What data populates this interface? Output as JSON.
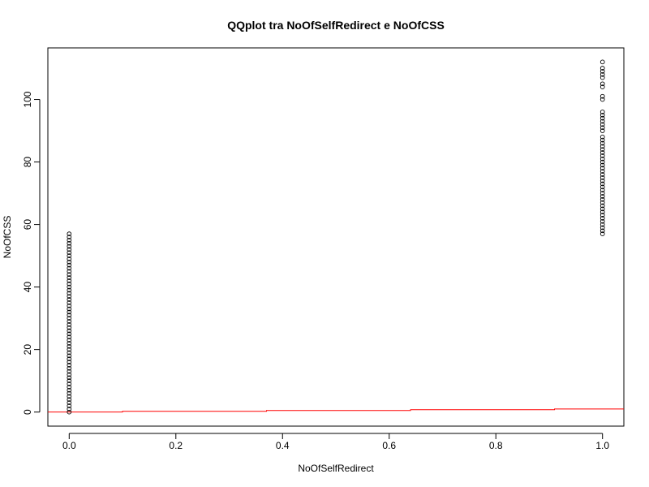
{
  "chart_data": {
    "type": "scatter",
    "title": "QQplot tra NoOfSelfRedirect e NoOfCSS",
    "xlabel": "NoOfSelfRedirect",
    "ylabel": "NoOfCSS",
    "xlim": [
      -0.04,
      1.04
    ],
    "ylim": [
      -4.5,
      116.5
    ],
    "x_ticks": [
      0.0,
      0.2,
      0.4,
      0.6,
      0.8,
      1.0
    ],
    "x_tick_labels": [
      "0.0",
      "0.2",
      "0.4",
      "0.6",
      "0.8",
      "1.0"
    ],
    "y_ticks": [
      0,
      20,
      40,
      60,
      80,
      100
    ],
    "y_tick_labels": [
      "0",
      "20",
      "40",
      "60",
      "80",
      "100"
    ],
    "grid": false,
    "series": [
      {
        "x": 0,
        "y": [
          0,
          1,
          2,
          3,
          4,
          5,
          6,
          7,
          8,
          9,
          10,
          11,
          12,
          13,
          14,
          15,
          16,
          17,
          18,
          19,
          20,
          21,
          22,
          23,
          24,
          25,
          26,
          27,
          28,
          29,
          30,
          31,
          32,
          33,
          34,
          35,
          36,
          37,
          38,
          39,
          40,
          41,
          42,
          43,
          44,
          45,
          46,
          47,
          48,
          49,
          50,
          51,
          52,
          53,
          54,
          55,
          56,
          57
        ],
        "marker": "open-circle",
        "color": "#000000"
      },
      {
        "x": 1,
        "y": [
          57,
          58,
          59,
          60,
          61,
          62,
          63,
          64,
          65,
          66,
          67,
          68,
          69,
          70,
          71,
          72,
          73,
          74,
          75,
          76,
          77,
          78,
          79,
          80,
          81,
          82,
          83,
          84,
          85,
          86,
          87,
          88,
          90,
          91,
          92,
          93,
          94,
          95,
          96,
          100,
          101,
          104,
          105,
          107,
          108,
          109,
          110,
          112
        ],
        "marker": "open-circle",
        "color": "#000000"
      }
    ],
    "reference_line": {
      "x": [
        -0.04,
        0.1,
        0.1,
        0.37,
        0.37,
        0.64,
        0.64,
        0.91,
        0.91,
        1.04
      ],
      "y": [
        0,
        0,
        0.25,
        0.25,
        0.5,
        0.5,
        0.75,
        0.75,
        1,
        1
      ],
      "color": "#ff0000"
    }
  }
}
